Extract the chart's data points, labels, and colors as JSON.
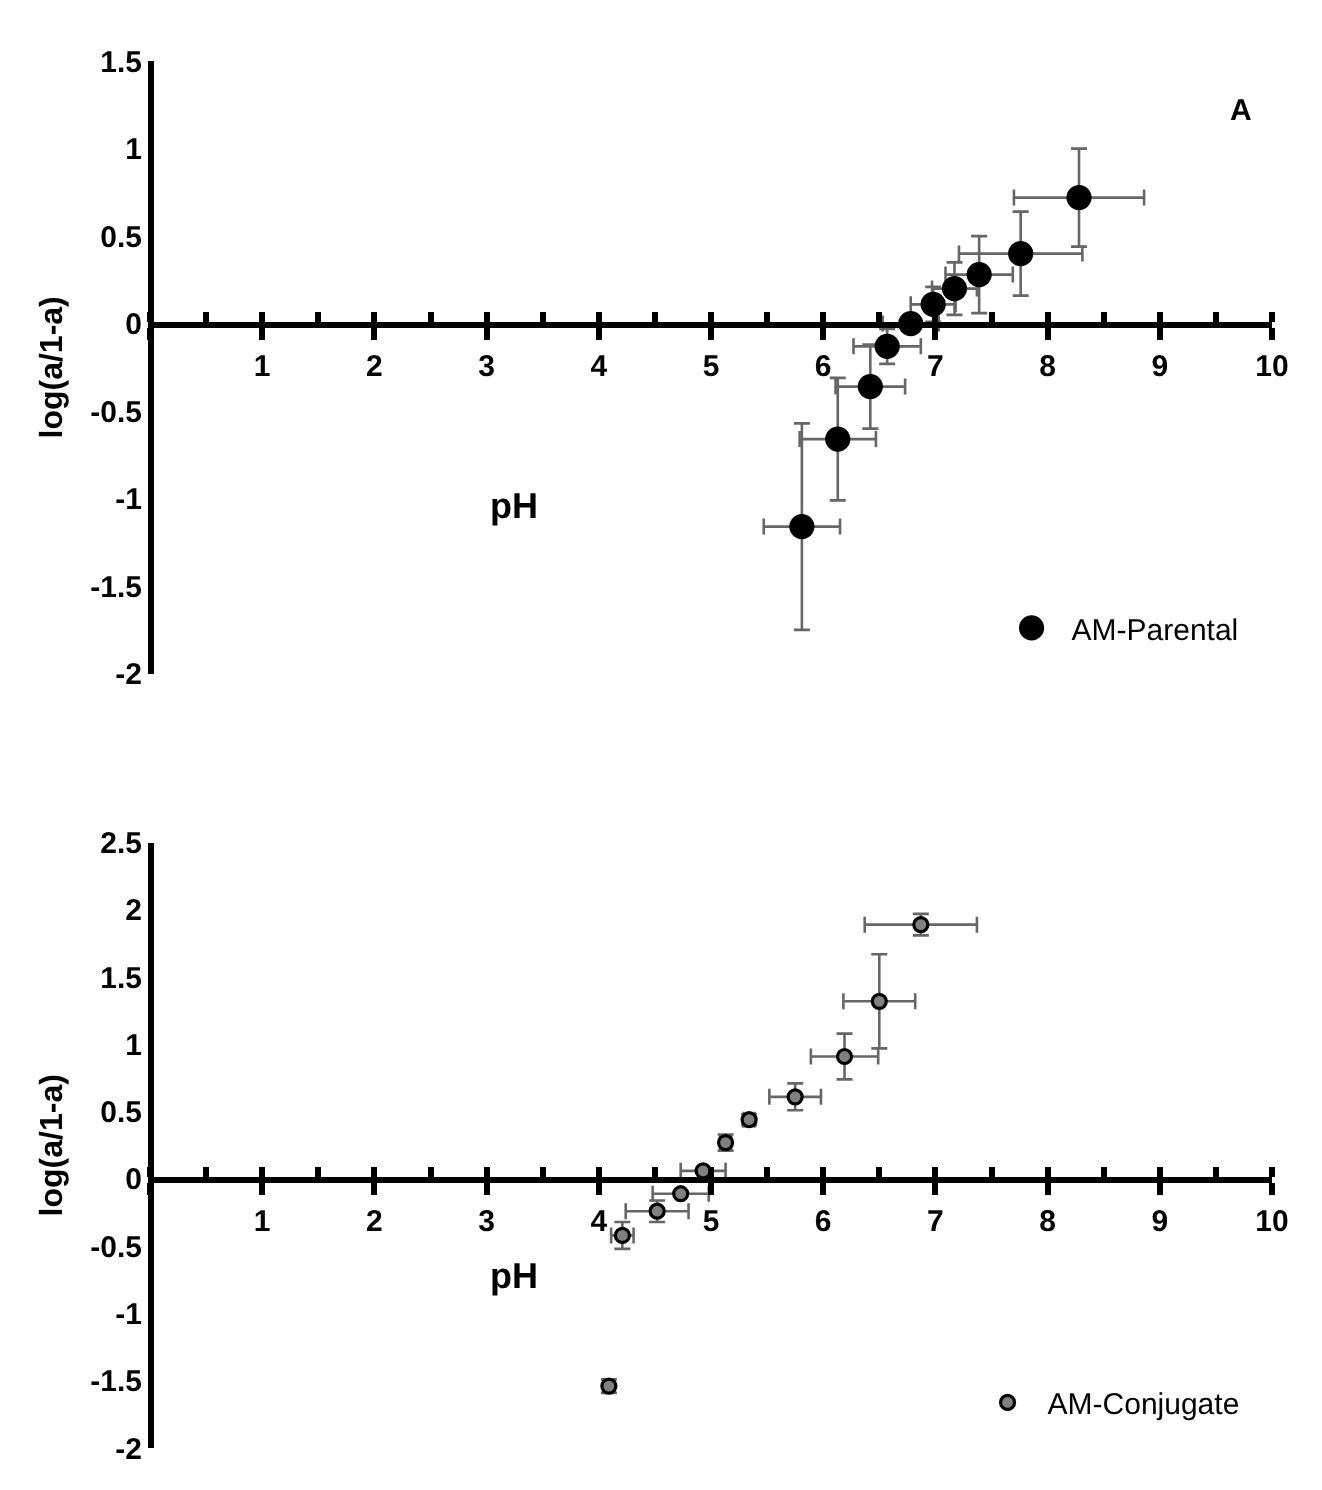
{
  "chart_data": [
    {
      "type": "scatter",
      "xlabel": "pH",
      "ylabel": "log(a/1-a)",
      "annotations": [
        "A"
      ],
      "marker": "circle",
      "legend": "bottom right",
      "xlim": [
        0,
        10
      ],
      "xticks": [
        {
          "value": 0,
          "label": null
        },
        1,
        2,
        3,
        4,
        5,
        6,
        7,
        8,
        9,
        10
      ],
      "ylim": [
        -2,
        1.5
      ],
      "yticks": [
        -2,
        -1.5,
        -1,
        -0.5,
        0,
        0.5,
        1,
        1.5
      ],
      "series": [
        {
          "name": "AM-Parental",
          "color": "#000000",
          "x": [
            5.81,
            6.13,
            6.42,
            6.57,
            6.78,
            6.98,
            7.17,
            7.39,
            7.76,
            8.28
          ],
          "values": [
            -1.16,
            -0.66,
            -0.36,
            -0.13,
            0.0,
            0.11,
            0.2,
            0.28,
            0.4,
            0.72
          ],
          "errors": [
            0.59,
            0.35,
            0.24,
            0.1,
            null,
            0.1,
            0.15,
            0.22,
            0.24,
            0.28
          ],
          "xerrors": [
            0.34,
            0.34,
            0.31,
            0.3,
            0.25,
            0.2,
            0.2,
            0.3,
            0.55,
            0.58
          ]
        }
      ]
    },
    {
      "type": "scatter",
      "xlabel": "pH",
      "ylabel": "log(a/1-a)",
      "marker": "circle",
      "legend": "bottom right",
      "xlim": [
        0,
        10
      ],
      "xticks": [
        {
          "value": 0,
          "label": null
        },
        1,
        2,
        3,
        4,
        5,
        6,
        7,
        8,
        9,
        10
      ],
      "ylim": [
        -2,
        2.5
      ],
      "yticks": [
        -2,
        -1.5,
        -1,
        -0.5,
        0,
        0.5,
        1,
        1.5,
        2,
        2.5
      ],
      "series": [
        {
          "name": "AM-Conjugate",
          "color": "#808080",
          "x": [
            4.09,
            4.21,
            4.52,
            4.73,
            4.93,
            5.13,
            5.34,
            5.75,
            6.19,
            6.5,
            6.87
          ],
          "values": [
            -1.54,
            -0.42,
            -0.24,
            -0.11,
            0.06,
            0.27,
            0.44,
            0.61,
            0.91,
            1.32,
            1.89
          ],
          "errors": [
            0.05,
            0.1,
            0.08,
            null,
            null,
            0.06,
            0.04,
            0.1,
            0.17,
            0.35,
            0.08
          ],
          "xerrors": [
            0.05,
            0.1,
            0.28,
            0.25,
            0.2,
            0.05,
            0.05,
            0.23,
            0.3,
            0.32,
            0.5
          ]
        }
      ]
    }
  ]
}
